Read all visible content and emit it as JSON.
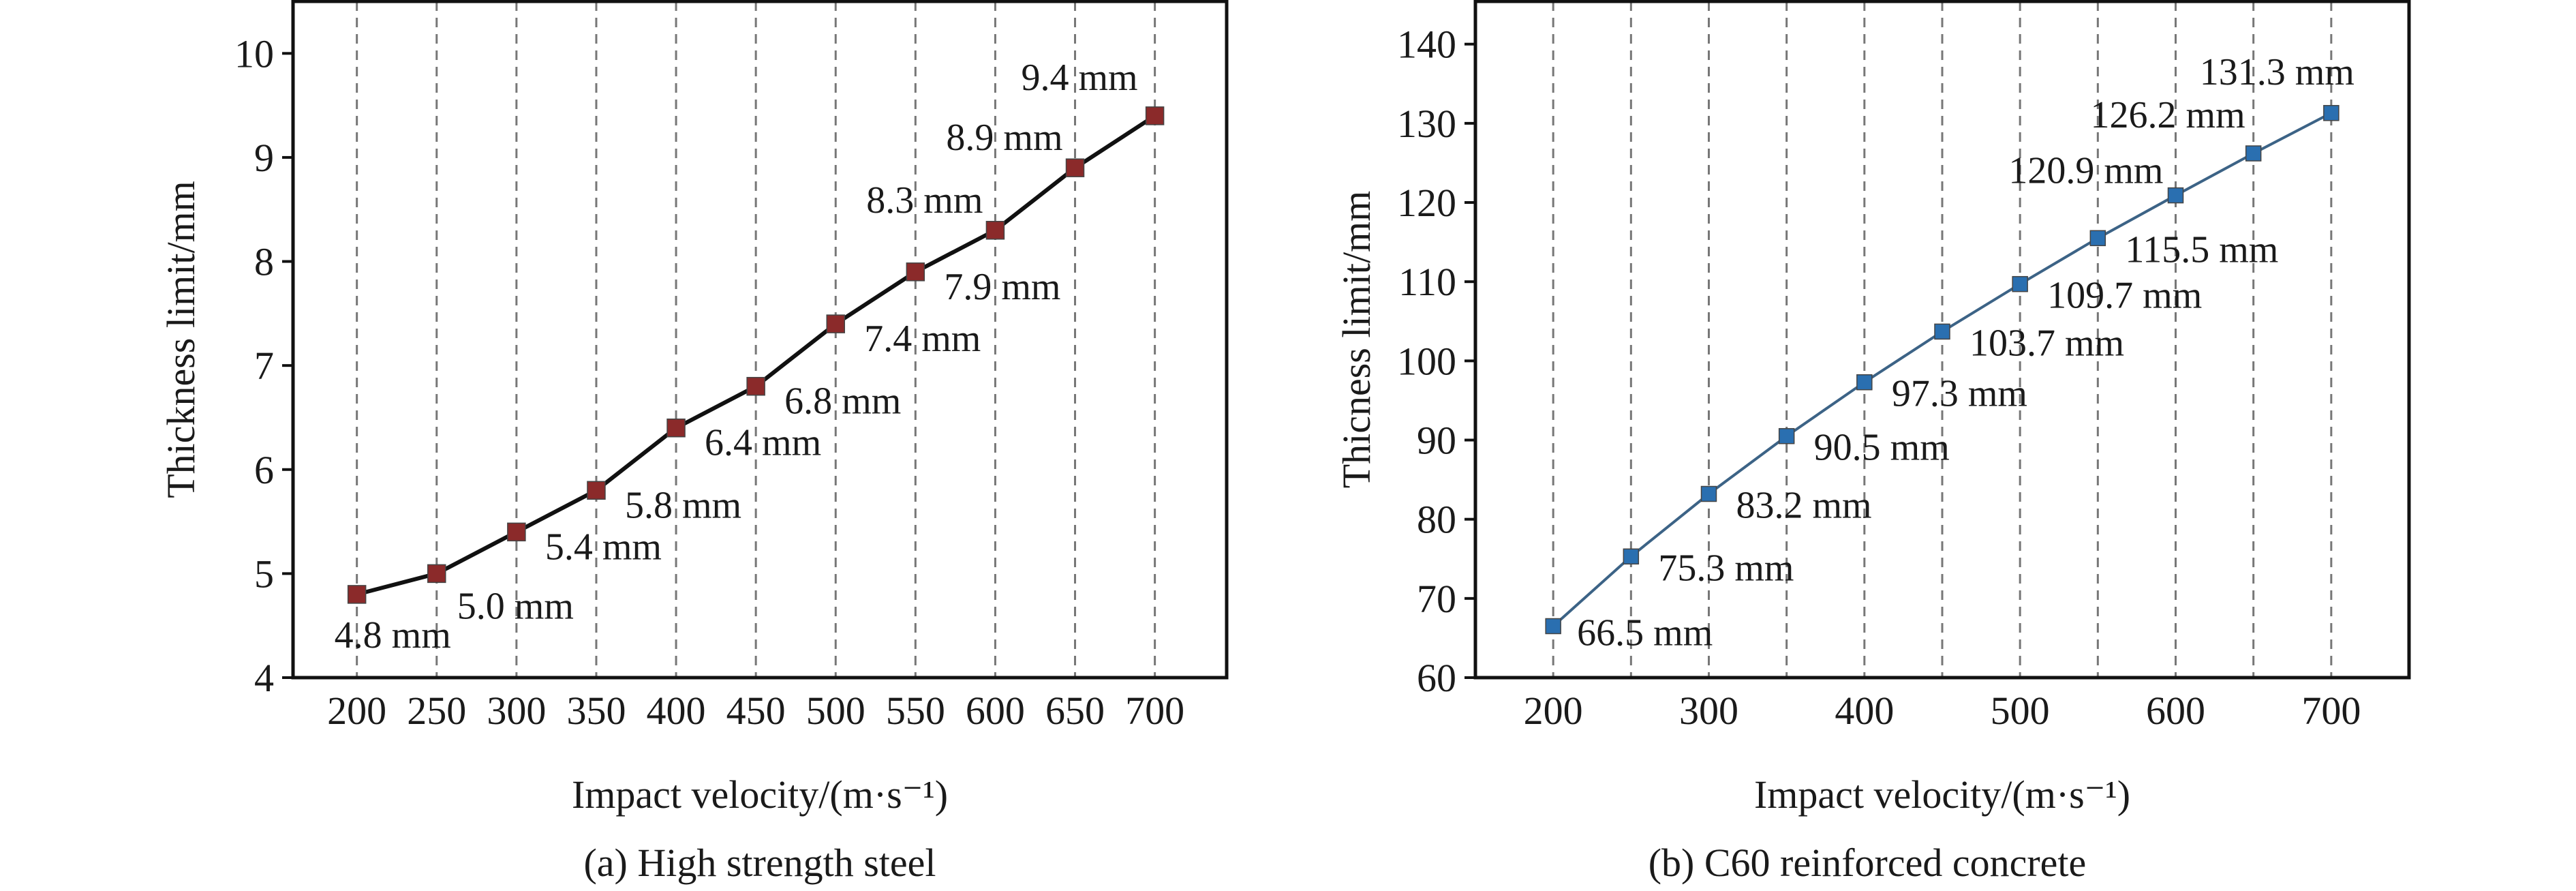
{
  "chart_data": [
    {
      "type": "line",
      "caption": "(a) High strength steel",
      "xlabel": "Impact velocity/(m·s⁻¹)",
      "ylabel": "Thickness limit/mm",
      "x": [
        200,
        250,
        300,
        350,
        400,
        450,
        500,
        550,
        600,
        650,
        700
      ],
      "values": [
        4.8,
        5.0,
        5.4,
        5.8,
        6.4,
        6.8,
        7.4,
        7.9,
        8.3,
        8.9,
        9.4
      ],
      "data_labels": [
        "4.8 mm",
        "5.0 mm",
        "5.4 mm",
        "5.8 mm",
        "6.4 mm",
        "6.8 mm",
        "7.4 mm",
        "7.9 mm",
        "8.3 mm",
        "8.9 mm",
        "9.4 mm"
      ],
      "xticks": [
        200,
        250,
        300,
        350,
        400,
        450,
        500,
        550,
        600,
        650,
        700
      ],
      "yticks": [
        4,
        5,
        6,
        7,
        8,
        9,
        10
      ],
      "xlim": [
        160,
        745
      ],
      "ylim": [
        4,
        10.5
      ],
      "grid": "vertical dashed",
      "line_color": "#111111",
      "marker_color": "#8b2a2a",
      "marker": "square"
    },
    {
      "type": "line",
      "caption": "(b) C60 reinforced concrete",
      "xlabel": "Impact velocity/(m·s⁻¹)",
      "ylabel": "Thicness limit/mm",
      "x": [
        200,
        250,
        300,
        350,
        400,
        450,
        500,
        550,
        600,
        650,
        700
      ],
      "values": [
        66.5,
        75.3,
        83.2,
        90.5,
        97.3,
        103.7,
        109.7,
        115.5,
        120.9,
        126.2,
        131.3
      ],
      "data_labels": [
        "66.5 mm",
        "75.3 mm",
        "83.2 mm",
        "90.5 mm",
        "97.3 mm",
        "103.7 mm",
        "109.7 mm",
        "115.5 mm",
        "120.9 mm",
        "126.2 mm",
        "131.3 mm"
      ],
      "xticks": [
        200,
        300,
        400,
        500,
        600,
        700
      ],
      "grid_x": [
        200,
        250,
        300,
        350,
        400,
        450,
        500,
        550,
        600,
        650,
        700
      ],
      "yticks": [
        60,
        70,
        80,
        90,
        100,
        110,
        120,
        130,
        140
      ],
      "xlim": [
        150,
        750
      ],
      "ylim": [
        60,
        145.4
      ],
      "grid": "vertical dashed",
      "line_color": "#3c6386",
      "marker_color": "#2a6fb0",
      "marker": "square"
    }
  ]
}
